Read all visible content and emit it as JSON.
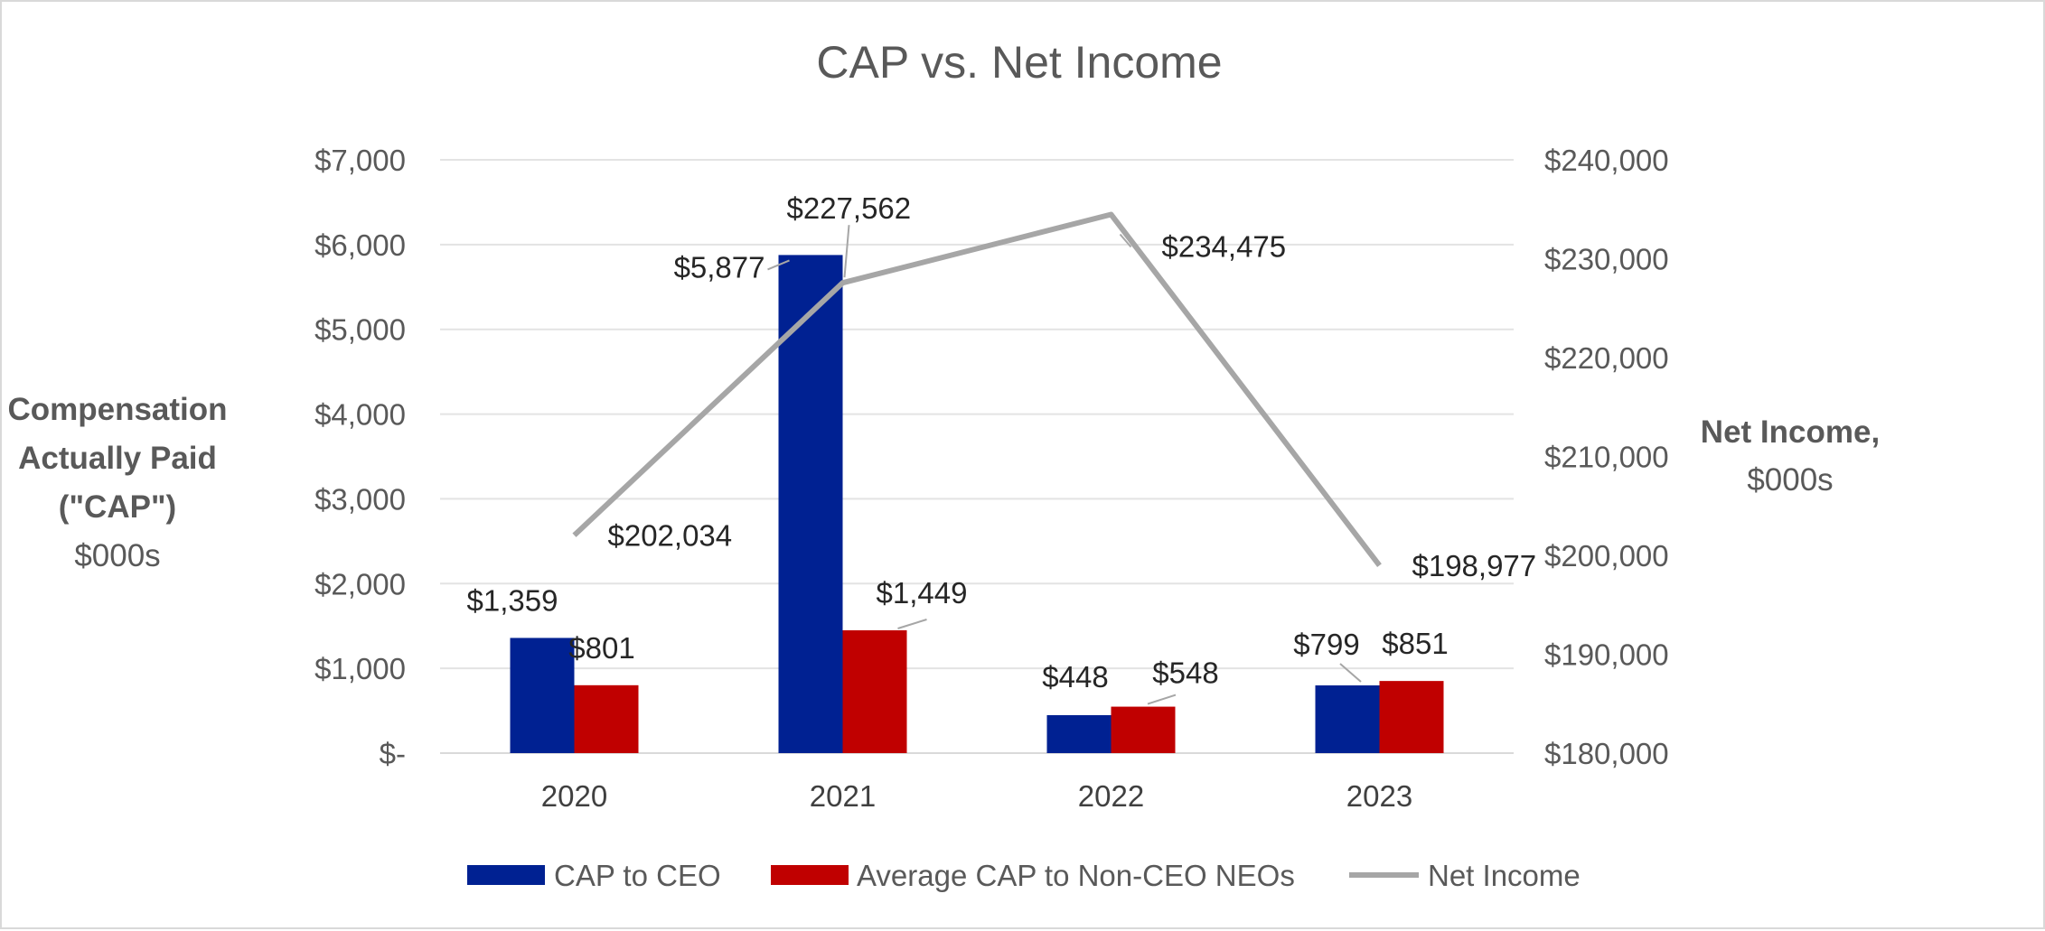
{
  "chart_data": {
    "type": "bar",
    "title": "CAP vs. Net Income",
    "categories": [
      "2020",
      "2021",
      "2022",
      "2023"
    ],
    "y_left": {
      "title_lines": [
        "Compensation",
        "Actually Paid",
        "(\"CAP\")"
      ],
      "unit_line": "$000s",
      "ylim": [
        0,
        7000
      ],
      "ticks": [
        0,
        1000,
        2000,
        3000,
        4000,
        5000,
        6000,
        7000
      ],
      "tick_labels": [
        "$-",
        "$1,000",
        "$2,000",
        "$3,000",
        "$4,000",
        "$5,000",
        "$6,000",
        "$7,000"
      ]
    },
    "y_right": {
      "title_lines": [
        "Net Income,"
      ],
      "unit_line": "$000s",
      "ylim": [
        180000,
        240000
      ],
      "ticks": [
        180000,
        190000,
        200000,
        210000,
        220000,
        230000,
        240000
      ],
      "tick_labels": [
        "$180,000",
        "$190,000",
        "$200,000",
        "$210,000",
        "$220,000",
        "$230,000",
        "$240,000"
      ]
    },
    "series": [
      {
        "name": "CAP to CEO",
        "kind": "bar",
        "axis": "left",
        "color": "#002192",
        "values": [
          1359,
          5877,
          448,
          799
        ],
        "labels": [
          "$1,359",
          "$5,877",
          "$448",
          "$799"
        ]
      },
      {
        "name": "Average CAP to Non-CEO NEOs",
        "kind": "bar",
        "axis": "left",
        "color": "#c00000",
        "values": [
          801,
          1449,
          548,
          851
        ],
        "labels": [
          "$801",
          "$1,449",
          "$548",
          "$851"
        ]
      },
      {
        "name": "Net Income",
        "kind": "line",
        "axis": "right",
        "color": "#a6a6a6",
        "values": [
          202034,
          227562,
          234475,
          198977
        ],
        "labels": [
          "$202,034",
          "$227,562",
          "$234,475",
          "$198,977"
        ]
      }
    ],
    "grid": true,
    "legend": "bottom"
  }
}
